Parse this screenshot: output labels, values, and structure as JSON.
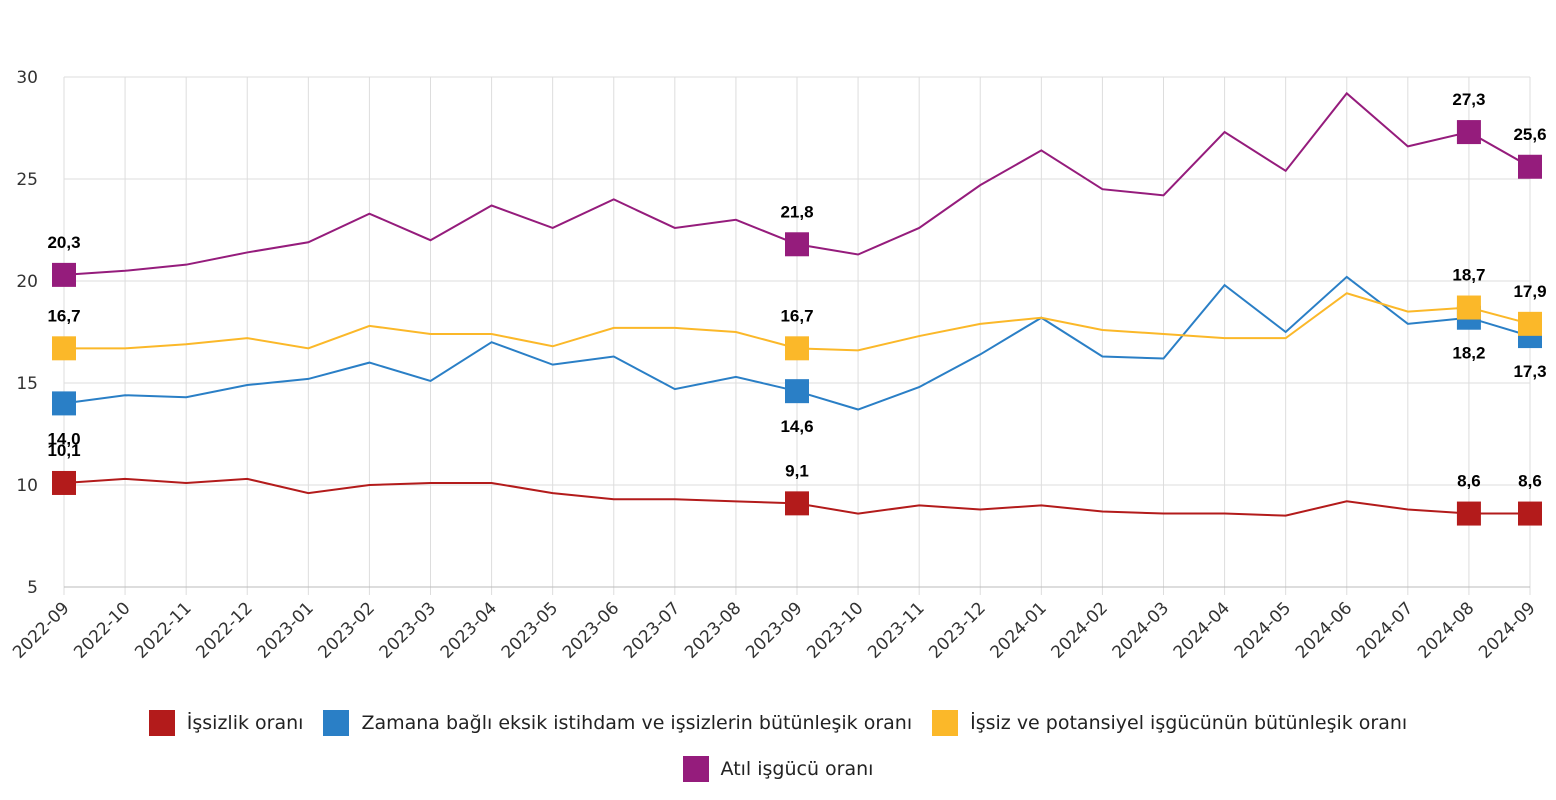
{
  "chart_data": {
    "type": "line",
    "categories": [
      "2022-09",
      "2022-10",
      "2022-11",
      "2022-12",
      "2023-01",
      "2023-02",
      "2023-03",
      "2023-04",
      "2023-05",
      "2023-06",
      "2023-07",
      "2023-08",
      "2023-09",
      "2023-10",
      "2023-11",
      "2023-12",
      "2024-01",
      "2024-02",
      "2024-03",
      "2024-04",
      "2024-05",
      "2024-06",
      "2024-07",
      "2024-08",
      "2024-09"
    ],
    "series": [
      {
        "name": "İşsizlik oranı",
        "color": "#b31b1b",
        "values": [
          10.1,
          10.3,
          10.1,
          10.3,
          9.6,
          10.0,
          10.1,
          10.1,
          9.6,
          9.3,
          9.3,
          9.2,
          9.1,
          8.6,
          9.0,
          8.8,
          9.0,
          8.7,
          8.6,
          8.6,
          8.5,
          9.2,
          8.8,
          8.6,
          8.6
        ],
        "value_labels": [
          "10,1",
          null,
          null,
          null,
          null,
          null,
          null,
          null,
          null,
          null,
          null,
          null,
          "9,1",
          null,
          null,
          null,
          null,
          null,
          null,
          null,
          null,
          null,
          null,
          "8,6",
          "8,6"
        ]
      },
      {
        "name": "Zamana bağlı eksik istihdam ve işsizlerin bütünleşik oranı",
        "color": "#2a7fc6",
        "values": [
          14.0,
          14.4,
          14.3,
          14.9,
          15.2,
          16.0,
          15.1,
          17.0,
          15.9,
          16.3,
          14.7,
          15.3,
          14.6,
          13.7,
          14.8,
          16.4,
          18.2,
          16.3,
          16.2,
          19.8,
          17.5,
          20.2,
          17.9,
          18.2,
          17.3
        ],
        "value_labels": [
          "14,0",
          null,
          null,
          null,
          null,
          null,
          null,
          null,
          null,
          null,
          null,
          null,
          "14,6",
          null,
          null,
          null,
          null,
          null,
          null,
          null,
          null,
          null,
          null,
          "18,2",
          "17,3"
        ]
      },
      {
        "name": "İşsiz ve potansiyel işgücünün bütünleşik oranı",
        "color": "#fbb829",
        "values": [
          16.7,
          16.7,
          16.9,
          17.2,
          16.7,
          17.8,
          17.4,
          17.4,
          16.8,
          17.7,
          17.7,
          17.5,
          16.7,
          16.6,
          17.3,
          17.9,
          18.2,
          17.6,
          17.4,
          17.2,
          17.2,
          19.4,
          18.5,
          18.7,
          17.9
        ],
        "value_labels": [
          "16,7",
          null,
          null,
          null,
          null,
          null,
          null,
          null,
          null,
          null,
          null,
          null,
          "16,7",
          null,
          null,
          null,
          null,
          null,
          null,
          null,
          null,
          null,
          null,
          "18,7",
          "17,9"
        ]
      },
      {
        "name": "Atıl işgücü oranı",
        "color": "#951c7c",
        "values": [
          20.3,
          20.5,
          20.8,
          21.4,
          21.9,
          23.3,
          22.0,
          23.7,
          22.6,
          24.0,
          22.6,
          23.0,
          21.8,
          21.3,
          22.6,
          24.7,
          26.4,
          24.5,
          24.2,
          27.3,
          25.4,
          29.2,
          26.6,
          27.3,
          25.6
        ],
        "value_labels": [
          "20,3",
          null,
          null,
          null,
          null,
          null,
          null,
          null,
          null,
          null,
          null,
          null,
          "21,8",
          null,
          null,
          null,
          null,
          null,
          null,
          null,
          null,
          null,
          null,
          "27,3",
          "25,6"
        ]
      }
    ],
    "ylim": [
      5,
      30
    ],
    "yticks": [
      5,
      10,
      15,
      20,
      25,
      30
    ],
    "grid": true
  }
}
